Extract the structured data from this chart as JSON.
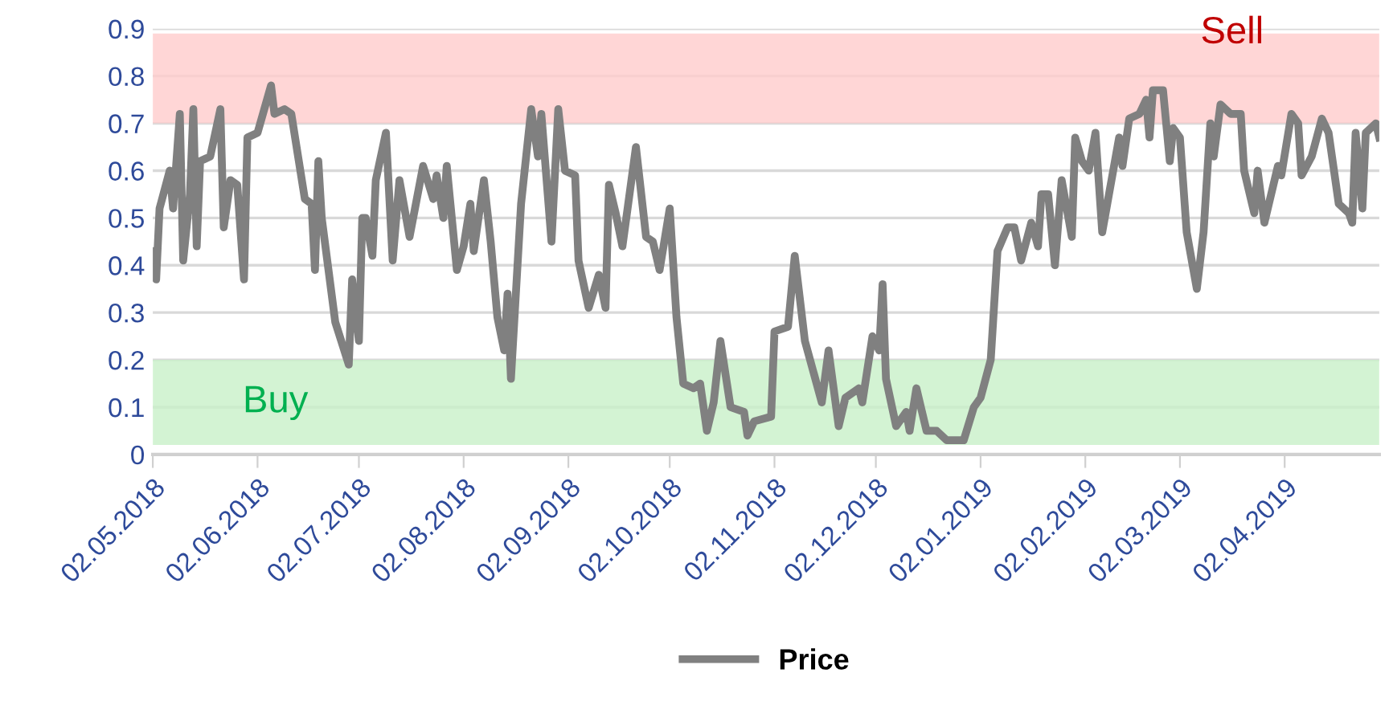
{
  "chart_data": {
    "type": "line",
    "x": [
      "2018-05-02",
      "2018-05-03",
      "2018-05-04",
      "2018-05-07",
      "2018-05-08",
      "2018-05-10",
      "2018-05-11",
      "2018-05-13",
      "2018-05-14",
      "2018-05-15",
      "2018-05-16",
      "2018-05-19",
      "2018-05-22",
      "2018-05-23",
      "2018-05-25",
      "2018-05-27",
      "2018-05-29",
      "2018-05-30",
      "2018-06-02",
      "2018-06-04",
      "2018-06-06",
      "2018-06-07",
      "2018-06-10",
      "2018-06-12",
      "2018-06-16",
      "2018-06-18",
      "2018-06-19",
      "2018-06-20",
      "2018-06-21",
      "2018-06-25",
      "2018-06-29",
      "2018-06-30",
      "2018-07-02",
      "2018-07-03",
      "2018-07-04",
      "2018-07-06",
      "2018-07-07",
      "2018-07-10",
      "2018-07-12",
      "2018-07-14",
      "2018-07-17",
      "2018-07-21",
      "2018-07-24",
      "2018-07-25",
      "2018-07-27",
      "2018-07-28",
      "2018-07-31",
      "2018-08-02",
      "2018-08-04",
      "2018-08-05",
      "2018-08-08",
      "2018-08-10",
      "2018-08-12",
      "2018-08-14",
      "2018-08-15",
      "2018-08-16",
      "2018-08-19",
      "2018-08-22",
      "2018-08-24",
      "2018-08-25",
      "2018-08-28",
      "2018-08-30",
      "2018-09-01",
      "2018-09-04",
      "2018-09-05",
      "2018-09-08",
      "2018-09-11",
      "2018-09-13",
      "2018-09-14",
      "2018-09-16",
      "2018-09-18",
      "2018-09-22",
      "2018-09-25",
      "2018-09-27",
      "2018-09-29",
      "2018-10-02",
      "2018-10-04",
      "2018-10-06",
      "2018-10-09",
      "2018-10-11",
      "2018-10-13",
      "2018-10-15",
      "2018-10-17",
      "2018-10-20",
      "2018-10-24",
      "2018-10-25",
      "2018-10-27",
      "2018-11-01",
      "2018-11-02",
      "2018-11-06",
      "2018-11-08",
      "2018-11-11",
      "2018-11-16",
      "2018-11-18",
      "2018-11-21",
      "2018-11-23",
      "2018-11-27",
      "2018-11-28",
      "2018-12-01",
      "2018-12-03",
      "2018-12-04",
      "2018-12-05",
      "2018-12-08",
      "2018-12-11",
      "2018-12-12",
      "2018-12-14",
      "2018-12-17",
      "2018-12-20",
      "2018-12-23",
      "2018-12-28",
      "2018-12-31",
      "2019-01-02",
      "2019-01-05",
      "2019-01-07",
      "2019-01-10",
      "2019-01-12",
      "2019-01-14",
      "2019-01-17",
      "2019-01-19",
      "2019-01-20",
      "2019-01-22",
      "2019-01-24",
      "2019-01-26",
      "2019-01-29",
      "2019-01-30",
      "2019-02-01",
      "2019-02-03",
      "2019-02-05",
      "2019-02-07",
      "2019-02-12",
      "2019-02-13",
      "2019-02-15",
      "2019-02-18",
      "2019-02-20",
      "2019-02-21",
      "2019-02-22",
      "2019-02-25",
      "2019-02-27",
      "2019-02-28",
      "2019-03-02",
      "2019-03-04",
      "2019-03-07",
      "2019-03-09",
      "2019-03-11",
      "2019-03-12",
      "2019-03-14",
      "2019-03-17",
      "2019-03-20",
      "2019-03-21",
      "2019-03-24",
      "2019-03-25",
      "2019-03-27",
      "2019-03-31",
      "2019-04-01",
      "2019-04-04",
      "2019-04-06",
      "2019-04-07",
      "2019-04-10",
      "2019-04-13",
      "2019-04-15",
      "2019-04-18",
      "2019-04-21",
      "2019-04-22",
      "2019-04-23",
      "2019-04-25",
      "2019-04-26",
      "2019-04-29",
      "2019-04-30"
    ],
    "series": [
      {
        "name": "Price",
        "color": "#808080",
        "values": [
          0.43,
          0.37,
          0.52,
          0.6,
          0.52,
          0.72,
          0.41,
          0.55,
          0.73,
          0.44,
          0.62,
          0.63,
          0.73,
          0.48,
          0.58,
          0.57,
          0.37,
          0.67,
          0.68,
          0.73,
          0.78,
          0.72,
          0.73,
          0.72,
          0.54,
          0.53,
          0.39,
          0.62,
          0.5,
          0.28,
          0.19,
          0.37,
          0.24,
          0.5,
          0.5,
          0.42,
          0.58,
          0.68,
          0.41,
          0.58,
          0.46,
          0.61,
          0.54,
          0.59,
          0.5,
          0.61,
          0.39,
          0.44,
          0.53,
          0.43,
          0.58,
          0.45,
          0.29,
          0.22,
          0.34,
          0.16,
          0.53,
          0.73,
          0.63,
          0.72,
          0.45,
          0.73,
          0.6,
          0.59,
          0.41,
          0.31,
          0.38,
          0.31,
          0.57,
          0.51,
          0.44,
          0.65,
          0.46,
          0.45,
          0.39,
          0.52,
          0.29,
          0.15,
          0.14,
          0.15,
          0.05,
          0.11,
          0.24,
          0.1,
          0.09,
          0.04,
          0.07,
          0.08,
          0.26,
          0.27,
          0.42,
          0.24,
          0.11,
          0.22,
          0.06,
          0.12,
          0.14,
          0.11,
          0.25,
          0.22,
          0.36,
          0.16,
          0.06,
          0.09,
          0.05,
          0.14,
          0.05,
          0.05,
          0.03,
          0.03,
          0.1,
          0.12,
          0.2,
          0.43,
          0.48,
          0.48,
          0.41,
          0.49,
          0.44,
          0.55,
          0.55,
          0.4,
          0.58,
          0.46,
          0.67,
          0.62,
          0.6,
          0.68,
          0.47,
          0.67,
          0.61,
          0.71,
          0.72,
          0.75,
          0.67,
          0.77,
          0.77,
          0.62,
          0.69,
          0.67,
          0.47,
          0.35,
          0.47,
          0.7,
          0.63,
          0.74,
          0.72,
          0.72,
          0.6,
          0.51,
          0.6,
          0.49,
          0.61,
          0.59,
          0.72,
          0.7,
          0.59,
          0.63,
          0.71,
          0.68,
          0.53,
          0.51,
          0.49,
          0.68,
          0.52,
          0.68,
          0.7,
          0.67
        ]
      }
    ],
    "xlim": [
      "2018-05-02",
      "2019-04-30"
    ],
    "xticks": [
      {
        "value": "2018-05-02",
        "label": "02.05.2018"
      },
      {
        "value": "2018-06-02",
        "label": "02.06.2018"
      },
      {
        "value": "2018-07-02",
        "label": "02.07.2018"
      },
      {
        "value": "2018-08-02",
        "label": "02.08.2018"
      },
      {
        "value": "2018-09-02",
        "label": "02.09.2018"
      },
      {
        "value": "2018-10-02",
        "label": "02.10.2018"
      },
      {
        "value": "2018-11-02",
        "label": "02.11.2018"
      },
      {
        "value": "2018-12-02",
        "label": "02.12.2018"
      },
      {
        "value": "2019-01-02",
        "label": "02.01.2019"
      },
      {
        "value": "2019-02-02",
        "label": "02.02.2019"
      },
      {
        "value": "2019-03-02",
        "label": "02.03.2019"
      },
      {
        "value": "2019-04-02",
        "label": "02.04.2019"
      }
    ],
    "ylim": [
      0,
      0.9
    ],
    "yticks": [
      0,
      0.1,
      0.2,
      0.3,
      0.4,
      0.5,
      0.6,
      0.7,
      0.8,
      0.9
    ],
    "bands": [
      {
        "axis": "y",
        "from": 0.7,
        "to": 0.89,
        "label": "Sell",
        "color": "#ffcccc"
      },
      {
        "axis": "y",
        "from": 0.02,
        "to": 0.2,
        "label": "Buy",
        "color": "#c8f0c8"
      }
    ],
    "grid": "y",
    "legend": "bottom",
    "marker": "none",
    "line_style": "solid"
  }
}
